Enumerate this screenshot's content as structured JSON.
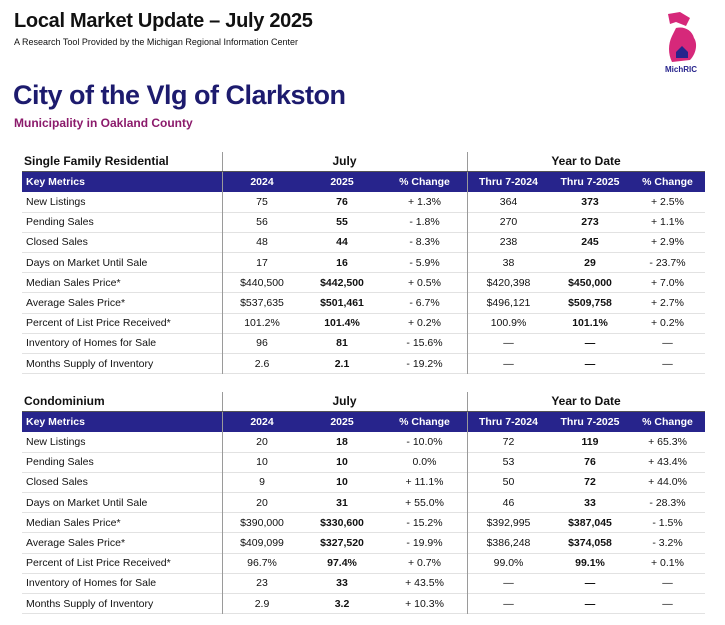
{
  "header": {
    "title": "Local Market Update – July 2025",
    "subtitle": "A Research Tool Provided by the Michigan Regional Information Center",
    "logo": "MichRIC"
  },
  "location": {
    "title": "City of the Vlg of Clarkston",
    "subtitle": "Municipality in Oakland County"
  },
  "tables": [
    {
      "title": "Single Family Residential",
      "groups": [
        "July",
        "Year to Date"
      ],
      "columns": [
        "Key Metrics",
        "2024",
        "2025",
        "% Change",
        "Thru 7-2024",
        "Thru 7-2025",
        "% Change"
      ],
      "rows": [
        [
          "New Listings",
          "75",
          "76",
          "+ 1.3%",
          "364",
          "373",
          "+ 2.5%"
        ],
        [
          "Pending Sales",
          "56",
          "55",
          "- 1.8%",
          "270",
          "273",
          "+ 1.1%"
        ],
        [
          "Closed Sales",
          "48",
          "44",
          "- 8.3%",
          "238",
          "245",
          "+ 2.9%"
        ],
        [
          "Days on Market Until Sale",
          "17",
          "16",
          "- 5.9%",
          "38",
          "29",
          "- 23.7%"
        ],
        [
          "Median Sales Price*",
          "$440,500",
          "$442,500",
          "+ 0.5%",
          "$420,398",
          "$450,000",
          "+ 7.0%"
        ],
        [
          "Average Sales Price*",
          "$537,635",
          "$501,461",
          "- 6.7%",
          "$496,121",
          "$509,758",
          "+ 2.7%"
        ],
        [
          "Percent of List Price Received*",
          "101.2%",
          "101.4%",
          "+ 0.2%",
          "100.9%",
          "101.1%",
          "+ 0.2%"
        ],
        [
          "Inventory of Homes for Sale",
          "96",
          "81",
          "- 15.6%",
          "—",
          "—",
          "—"
        ],
        [
          "Months Supply of Inventory",
          "2.6",
          "2.1",
          "- 19.2%",
          "—",
          "—",
          "—"
        ]
      ]
    },
    {
      "title": "Condominium",
      "groups": [
        "July",
        "Year to Date"
      ],
      "columns": [
        "Key Metrics",
        "2024",
        "2025",
        "% Change",
        "Thru 7-2024",
        "Thru 7-2025",
        "% Change"
      ],
      "rows": [
        [
          "New Listings",
          "20",
          "18",
          "- 10.0%",
          "72",
          "119",
          "+ 65.3%"
        ],
        [
          "Pending Sales",
          "10",
          "10",
          "0.0%",
          "53",
          "76",
          "+ 43.4%"
        ],
        [
          "Closed Sales",
          "9",
          "10",
          "+ 11.1%",
          "50",
          "72",
          "+ 44.0%"
        ],
        [
          "Days on Market Until Sale",
          "20",
          "31",
          "+ 55.0%",
          "46",
          "33",
          "- 28.3%"
        ],
        [
          "Median Sales Price*",
          "$390,000",
          "$330,600",
          "- 15.2%",
          "$392,995",
          "$387,045",
          "- 1.5%"
        ],
        [
          "Average Sales Price*",
          "$409,099",
          "$327,520",
          "- 19.9%",
          "$386,248",
          "$374,058",
          "- 3.2%"
        ],
        [
          "Percent of List Price Received*",
          "96.7%",
          "97.4%",
          "+ 0.7%",
          "99.0%",
          "99.1%",
          "+ 0.1%"
        ],
        [
          "Inventory of Homes for Sale",
          "23",
          "33",
          "+ 43.5%",
          "—",
          "—",
          "—"
        ],
        [
          "Months Supply of Inventory",
          "2.9",
          "3.2",
          "+ 10.3%",
          "—",
          "—",
          "—"
        ]
      ]
    }
  ]
}
